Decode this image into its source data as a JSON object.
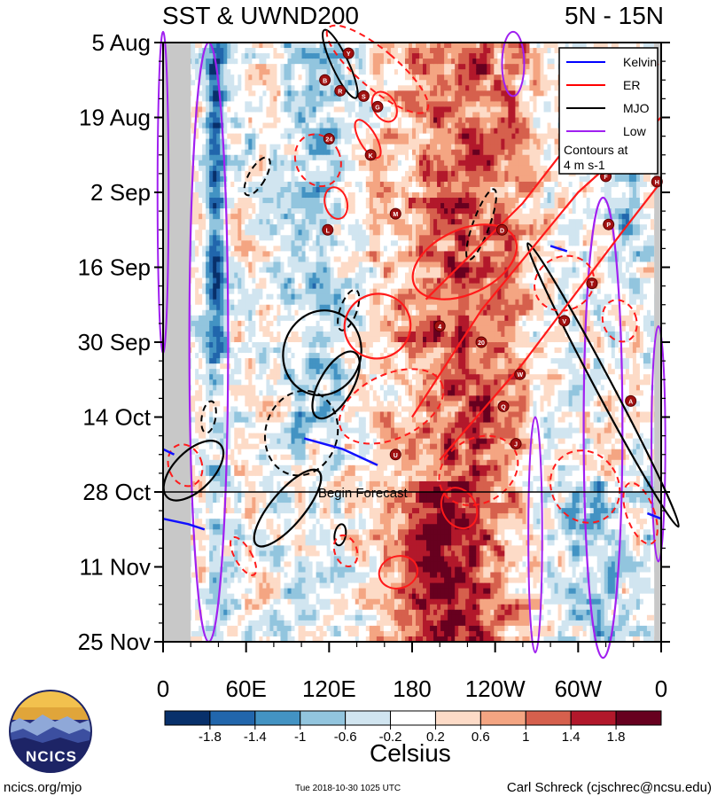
{
  "header": {
    "title_left": "SST & UWND200",
    "title_right": "5N - 15N"
  },
  "colorbar": {
    "unit": "Celsius",
    "tick_labels": [
      "-1.8",
      "-1.4",
      "-1",
      "-0.6",
      "-0.2",
      "0.2",
      "0.6",
      "1",
      "1.4",
      "1.8"
    ],
    "colors": [
      "#08306b",
      "#2166ac",
      "#4393c3",
      "#92c5de",
      "#d1e5f0",
      "#ffffff",
      "#fddbc7",
      "#f4a582",
      "#d6604d",
      "#b2182b",
      "#67001f"
    ]
  },
  "logo": {
    "text": "NCICS"
  },
  "footer": {
    "left": "ncics.org/mjo",
    "middle": "Tue 2018-10-30 1025 UTC",
    "right": "Carl Schreck (cjschrec@ncsu.edu)"
  },
  "chart_data": {
    "type": "heatmap",
    "x_tick_labels": [
      "0",
      "60E",
      "120E",
      "180",
      "120W",
      "60W",
      "0"
    ],
    "y_tick_labels": [
      "5 Aug",
      "19 Aug",
      "2 Sep",
      "16 Sep",
      "30 Sep",
      "14 Oct",
      "28 Oct",
      "11 Nov",
      "25 Nov"
    ],
    "legend": {
      "position": "top-right",
      "entries": [
        {
          "name": "Kelvin",
          "color": "#0000ff"
        },
        {
          "name": "ER",
          "color": "#ff0000"
        },
        {
          "name": "MJO",
          "color": "#000000"
        },
        {
          "name": "Low",
          "color": "#a020f0"
        }
      ],
      "note": [
        "Contours at",
        "4 m s-1"
      ]
    },
    "forecast_line": {
      "date": "28 Oct",
      "label": "Begin Forecast"
    },
    "masked_longitudes": [
      [
        0,
        20
      ],
      [
        355,
        360
      ]
    ],
    "storm_markers": [
      "Y",
      "B",
      "R",
      "S",
      "G",
      "24",
      "K",
      "L",
      "M",
      "N",
      "O",
      "F",
      "H",
      "P",
      "D",
      "T",
      "4",
      "20",
      "W",
      "Q",
      "J",
      "U",
      "A",
      "V"
    ]
  }
}
